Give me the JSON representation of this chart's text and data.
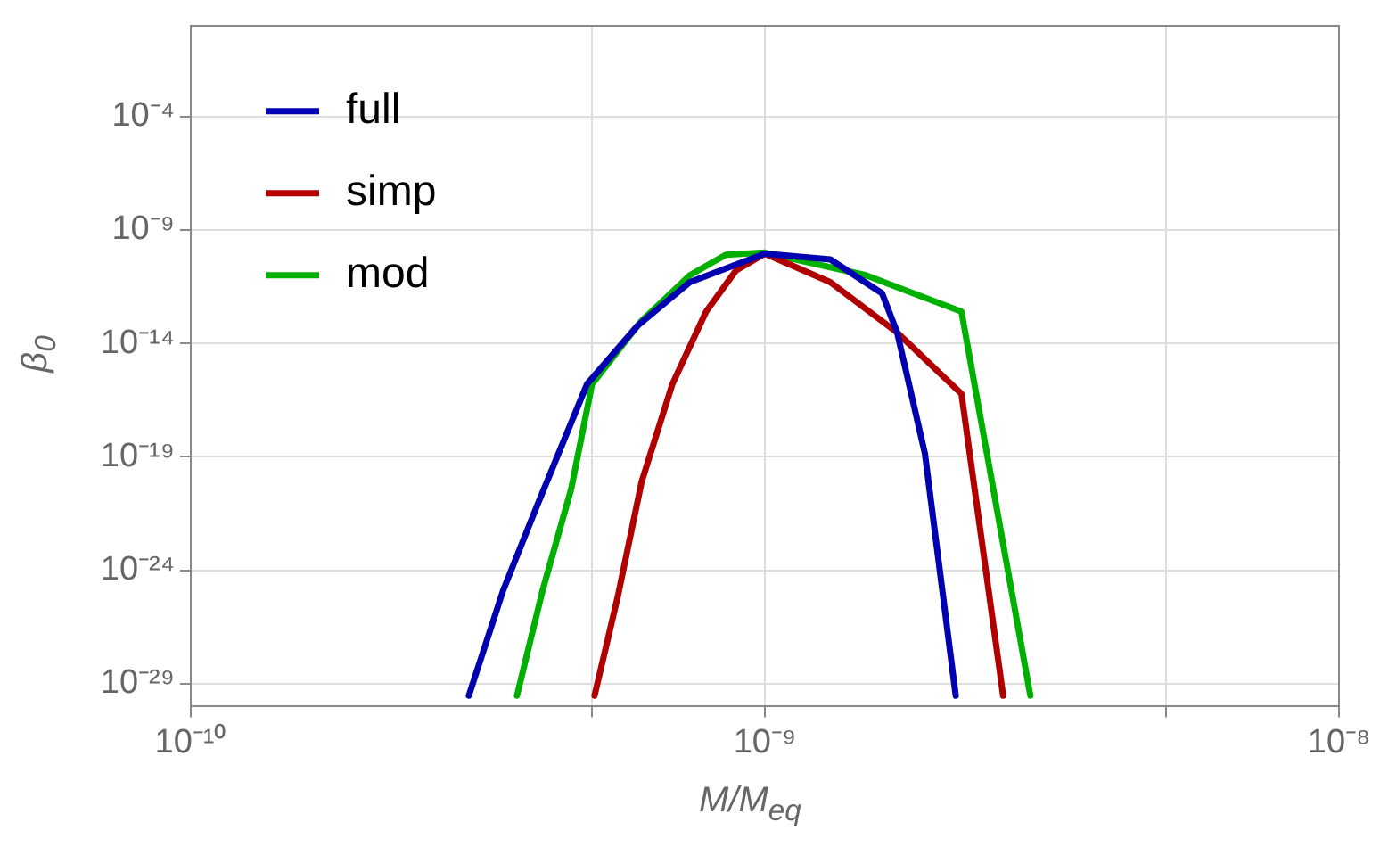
{
  "chart_data": {
    "type": "line",
    "xlabel": "M/M$_{eq}$",
    "ylabel": "β$_{0}$",
    "log": "xy",
    "grid": true,
    "legend": "top left",
    "line_style": "solid",
    "marker": "none",
    "xlim": [
      1e-10,
      1e-08
    ],
    "ylim": [
      1e-30,
      1
    ],
    "xticks": [
      {
        "value": 1e-10,
        "label": "10⁻¹⁰"
      },
      {
        "value": 5e-10,
        "label": null
      },
      {
        "value": 1e-09,
        "label": "10⁻⁹"
      },
      {
        "value": 5e-09,
        "label": null
      },
      {
        "value": 1e-08,
        "label": "10⁻⁸"
      }
    ],
    "yticks": [
      {
        "value": 1e-29,
        "label": "10⁻²⁹"
      },
      {
        "value": 1e-24,
        "label": "10⁻²⁴"
      },
      {
        "value": 1e-19,
        "label": "10⁻¹⁹"
      },
      {
        "value": 1e-14,
        "label": "10⁻¹⁴"
      },
      {
        "value": 1e-09,
        "label": "10⁻⁹"
      },
      {
        "value": 0.0001,
        "label": "10⁻⁴"
      }
    ],
    "series": [
      {
        "name": "full",
        "color": "#0000b0",
        "x": [
          3.05e-10,
          3.5e-10,
          4e-10,
          4.9e-10,
          6e-10,
          7.4e-10,
          1e-09,
          1.3e-09,
          1.6e-09,
          1.7e-09,
          1.9e-09,
          2.15e-09
        ],
        "values": [
          3e-30,
          1.3e-25,
          6e-22,
          1.6e-16,
          6e-14,
          5e-12,
          9e-11,
          5e-11,
          1.6e-12,
          3e-14,
          1.4e-19,
          3e-30
        ]
      },
      {
        "name": "simp",
        "color": "#b00000",
        "x": [
          5.05e-10,
          5.55e-10,
          6.1e-10,
          6.9e-10,
          7.9e-10,
          8.9e-10,
          1e-09,
          1.3e-09,
          1.7e-09,
          2.2e-09,
          2.6e-09
        ],
        "values": [
          3e-30,
          8e-26,
          8e-21,
          1.6e-16,
          2.5e-13,
          1.6e-11,
          9e-11,
          5e-12,
          3e-14,
          6e-17,
          3e-30
        ]
      },
      {
        "name": "mod",
        "color": "#00b000",
        "x": [
          3.7e-10,
          4.1e-10,
          4.6e-10,
          5e-10,
          6.1e-10,
          7.4e-10,
          8.55e-10,
          1e-09,
          1.5e-09,
          2.2e-09,
          2.9e-09
        ],
        "values": [
          3e-30,
          1.3e-25,
          4e-21,
          1.6e-16,
          1e-13,
          1e-11,
          8e-11,
          1e-10,
          1e-11,
          2.5e-13,
          3e-30
        ]
      }
    ]
  }
}
